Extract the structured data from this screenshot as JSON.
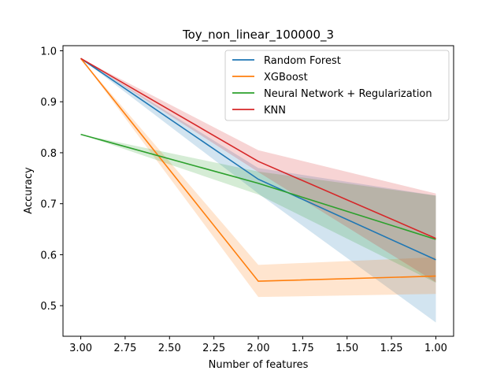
{
  "chart_data": {
    "type": "line",
    "title": "Toy_non_linear_100000_3",
    "xlabel": "Number of features",
    "ylabel": "Accuracy",
    "x": [
      3,
      2,
      1
    ],
    "xlim": [
      3.1,
      0.9
    ],
    "ylim": [
      0.44,
      1.01
    ],
    "x_inverted": true,
    "xticks": [
      3.0,
      2.75,
      2.5,
      2.25,
      2.0,
      1.75,
      1.5,
      1.25,
      1.0
    ],
    "xtick_labels": [
      "3.00",
      "2.75",
      "2.50",
      "2.25",
      "2.00",
      "1.75",
      "1.50",
      "1.25",
      "1.00"
    ],
    "yticks": [
      0.5,
      0.6,
      0.7,
      0.8,
      0.9,
      1.0
    ],
    "ytick_labels": [
      "0.5",
      "0.6",
      "0.7",
      "0.8",
      "0.9",
      "1.0"
    ],
    "grid": false,
    "legend_position": "top-right",
    "series": [
      {
        "name": "Random Forest",
        "color": "#1f77b4",
        "values": [
          0.985,
          0.748,
          0.59
        ],
        "lower": [
          0.985,
          0.72,
          0.467
        ],
        "upper": [
          0.985,
          0.77,
          0.716
        ]
      },
      {
        "name": "XGBoost",
        "color": "#ff7f0e",
        "values": [
          0.985,
          0.548,
          0.558
        ],
        "lower": [
          0.985,
          0.517,
          0.523
        ],
        "upper": [
          0.985,
          0.58,
          0.595
        ]
      },
      {
        "name": "Neural Network + Regularization",
        "color": "#2ca02c",
        "values": [
          0.836,
          0.74,
          0.63
        ],
        "lower": [
          0.836,
          0.718,
          0.545
        ],
        "upper": [
          0.836,
          0.763,
          0.716
        ]
      },
      {
        "name": "KNN",
        "color": "#d62728",
        "values": [
          0.985,
          0.783,
          0.632
        ],
        "lower": [
          0.985,
          0.762,
          0.546
        ],
        "upper": [
          0.985,
          0.805,
          0.72
        ]
      }
    ]
  }
}
